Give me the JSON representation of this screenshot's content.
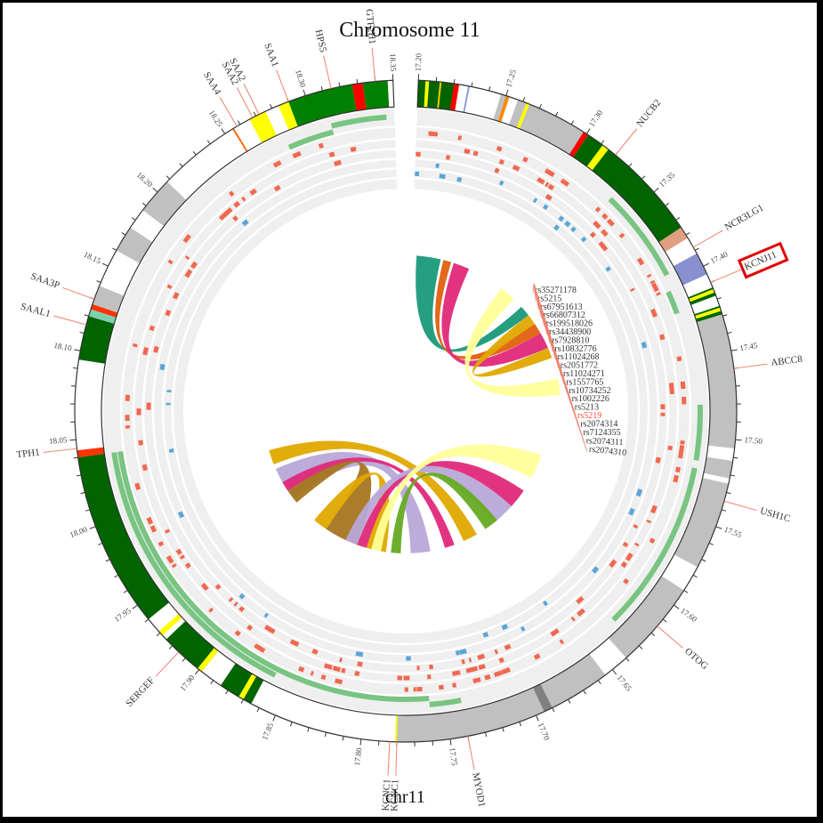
{
  "title": "Chromosome  11",
  "chromosome_label": "chr11",
  "colors": {
    "border": "#000000",
    "gene_line": "#f08070",
    "highlight_box": "#e00000",
    "highlight_snp": "#ff4d3a",
    "track_bg": "#efefef",
    "track_green": "#6cbf75",
    "track_red": "#f0684f",
    "track_blue": "#5aa5d8"
  },
  "chart_data": {
    "type": "circos",
    "title": "Chromosome 11",
    "chromosome": "chr11",
    "axis_unit": "Mb",
    "axis_range": [
      17.2,
      18.35
    ],
    "tick_labels": [
      "17.20",
      "17.25",
      "17.30",
      "17.35",
      "17.40",
      "17.45",
      "17.50",
      "17.55",
      "17.60",
      "17.65",
      "17.70",
      "17.75",
      "17.80",
      "17.85",
      "17.90",
      "17.95",
      "18.00",
      "18.05",
      "18.10",
      "18.15",
      "18.20",
      "18.25",
      "18.30",
      "18.35"
    ],
    "genes": [
      {
        "name": "GTF2H1",
        "pos": 18.34
      },
      {
        "name": "HPS5",
        "pos": 18.315
      },
      {
        "name": "SAA1",
        "pos": 18.29
      },
      {
        "name": "SAA2",
        "pos": 18.272
      },
      {
        "name": "SAA2",
        "pos": 18.268
      },
      {
        "name": "SAA4",
        "pos": 18.258
      },
      {
        "name": "NUCB2",
        "pos": 17.32
      },
      {
        "name": "NCR3LG1",
        "pos": 17.388
      },
      {
        "name": "KCNJ11",
        "pos": 17.41,
        "highlighted": true
      },
      {
        "name": "ABCC8",
        "pos": 17.46
      },
      {
        "name": "USH1C",
        "pos": 17.535
      },
      {
        "name": "OTOG",
        "pos": 17.615
      },
      {
        "name": "MYOD1",
        "pos": 17.74
      },
      {
        "name": "KCNC1",
        "pos": 17.784
      },
      {
        "name": "KCNC1",
        "pos": 17.78
      },
      {
        "name": "SERGEF",
        "pos": 17.915
      },
      {
        "name": "TPH1",
        "pos": 18.045
      },
      {
        "name": "SAAL1",
        "pos": 18.115
      },
      {
        "name": "SAA3P",
        "pos": 18.13
      }
    ],
    "snps": [
      "rs35271178",
      "rs5215",
      "rs67951613",
      "rs66807312",
      "rs199518026",
      "rs34438900",
      "rs7928810",
      "rs10832776",
      "rs11024268",
      "rs2051772",
      "rs11024271",
      "rs1557765",
      "rs10734252",
      "rs1002226",
      "rs5213",
      "rs5219",
      "rs2074314",
      "rs7124355",
      "rs2074311",
      "rs2074310"
    ],
    "highlighted_snp": "rs5219",
    "ideogram_segments": [
      {
        "start": 17.2,
        "end": 17.223,
        "color": "#006400"
      },
      {
        "start": 17.204,
        "end": 17.206,
        "color": "#ffff00"
      },
      {
        "start": 17.212,
        "end": 17.213,
        "color": "#ffcc00"
      },
      {
        "start": 17.22,
        "end": 17.223,
        "color": "#ff0000"
      },
      {
        "start": 17.223,
        "end": 17.247,
        "color": "#ffffff"
      },
      {
        "start": 17.228,
        "end": 17.229,
        "color": "#8899dd"
      },
      {
        "start": 17.247,
        "end": 17.298,
        "color": "#c0c0c0"
      },
      {
        "start": 17.25,
        "end": 17.252,
        "color": "#ff8800"
      },
      {
        "start": 17.252,
        "end": 17.257,
        "color": "#ffffff"
      },
      {
        "start": 17.262,
        "end": 17.264,
        "color": "#ffff00"
      },
      {
        "start": 17.298,
        "end": 17.301,
        "color": "#ff0000"
      },
      {
        "start": 17.301,
        "end": 17.375,
        "color": "#006400"
      },
      {
        "start": 17.311,
        "end": 17.315,
        "color": "#ffff00"
      },
      {
        "start": 17.375,
        "end": 17.382,
        "color": "#e0a080"
      },
      {
        "start": 17.382,
        "end": 17.392,
        "color": "#ffffff"
      },
      {
        "start": 17.392,
        "end": 17.405,
        "color": "#8890d0"
      },
      {
        "start": 17.405,
        "end": 17.413,
        "color": "#ffffff"
      },
      {
        "start": 17.413,
        "end": 17.418,
        "color": "#006400"
      },
      {
        "start": 17.414,
        "end": 17.416,
        "color": "#ffff00"
      },
      {
        "start": 17.418,
        "end": 17.424,
        "color": "#ffffff"
      },
      {
        "start": 17.424,
        "end": 17.429,
        "color": "#006400"
      },
      {
        "start": 17.425,
        "end": 17.427,
        "color": "#ffff00"
      },
      {
        "start": 17.429,
        "end": 17.505,
        "color": "#c0c0c0"
      },
      {
        "start": 17.505,
        "end": 17.512,
        "color": "#ffffff"
      },
      {
        "start": 17.512,
        "end": 17.522,
        "color": "#c0c0c0"
      },
      {
        "start": 17.522,
        "end": 17.525,
        "color": "#ffffff"
      },
      {
        "start": 17.525,
        "end": 17.575,
        "color": "#c0c0c0"
      },
      {
        "start": 17.575,
        "end": 17.59,
        "color": "#ffffff"
      },
      {
        "start": 17.59,
        "end": 17.64,
        "color": "#c0c0c0"
      },
      {
        "start": 17.64,
        "end": 17.655,
        "color": "#ffffff"
      },
      {
        "start": 17.655,
        "end": 17.78,
        "color": "#c0c0c0"
      },
      {
        "start": 17.69,
        "end": 17.695,
        "color": "#808080"
      },
      {
        "start": 17.78,
        "end": 17.781,
        "color": "#ffff00"
      },
      {
        "start": 17.781,
        "end": 17.865,
        "color": "#ffffff"
      },
      {
        "start": 17.865,
        "end": 17.885,
        "color": "#006400"
      },
      {
        "start": 17.87,
        "end": 17.873,
        "color": "#ffff00"
      },
      {
        "start": 17.885,
        "end": 17.898,
        "color": "#ffffff"
      },
      {
        "start": 17.898,
        "end": 17.925,
        "color": "#006400"
      },
      {
        "start": 17.898,
        "end": 17.901,
        "color": "#ffff00"
      },
      {
        "start": 17.925,
        "end": 17.94,
        "color": "#ffffff"
      },
      {
        "start": 17.94,
        "end": 18.04,
        "color": "#006400"
      },
      {
        "start": 17.928,
        "end": 17.931,
        "color": "#ffff00"
      },
      {
        "start": 18.04,
        "end": 18.044,
        "color": "#ff3300"
      },
      {
        "start": 18.044,
        "end": 18.075,
        "color": "#ffffff"
      },
      {
        "start": 18.075,
        "end": 18.095,
        "color": "#ffffff"
      },
      {
        "start": 18.095,
        "end": 18.12,
        "color": "#006400"
      },
      {
        "start": 18.12,
        "end": 18.124,
        "color": "#7fd0b0"
      },
      {
        "start": 18.124,
        "end": 18.127,
        "color": "#ff3300"
      },
      {
        "start": 18.127,
        "end": 18.138,
        "color": "#c0c0c0"
      },
      {
        "start": 18.138,
        "end": 18.16,
        "color": "#ffffff"
      },
      {
        "start": 18.16,
        "end": 18.175,
        "color": "#c0c0c0"
      },
      {
        "start": 18.175,
        "end": 18.187,
        "color": "#ffffff"
      },
      {
        "start": 18.187,
        "end": 18.208,
        "color": "#c0c0c0"
      },
      {
        "start": 18.208,
        "end": 18.255,
        "color": "#ffffff"
      },
      {
        "start": 18.255,
        "end": 18.256,
        "color": "#ff6600"
      },
      {
        "start": 18.256,
        "end": 18.266,
        "color": "#ffffff"
      },
      {
        "start": 18.266,
        "end": 18.276,
        "color": "#ffff00"
      },
      {
        "start": 18.276,
        "end": 18.284,
        "color": "#ffffff"
      },
      {
        "start": 18.284,
        "end": 18.29,
        "color": "#ffff00"
      },
      {
        "start": 18.29,
        "end": 18.327,
        "color": "#008000"
      },
      {
        "start": 18.327,
        "end": 18.333,
        "color": "#ff0000"
      },
      {
        "start": 18.333,
        "end": 18.347,
        "color": "#008000"
      },
      {
        "start": 18.347,
        "end": 18.35,
        "color": "#ffffff"
      }
    ],
    "tracks": [
      {
        "name": "green-track-outer",
        "color": "#6cbf75",
        "segments": [
          [
            18.31,
            18.345
          ],
          [
            17.335,
            17.395
          ],
          [
            17.48,
            17.515
          ],
          [
            17.52,
            17.63
          ],
          [
            17.74,
            17.76
          ],
          [
            17.86,
            18.04
          ]
        ]
      },
      {
        "name": "green-track-inner",
        "color": "#6cbf75",
        "segments": [
          [
            18.28,
            18.31
          ],
          [
            17.405,
            17.42
          ],
          [
            17.76,
            17.83
          ],
          [
            17.83,
            18.04
          ]
        ]
      },
      {
        "name": "snp-track-1",
        "color": "#f0684f"
      },
      {
        "name": "snp-track-2",
        "color": "#f0684f"
      },
      {
        "name": "snp-track-3",
        "color": "#f0684f"
      },
      {
        "name": "snp-track-4",
        "color": "#5aa5d8"
      },
      {
        "name": "snp-track-5",
        "color": "#5aa5d8"
      }
    ],
    "link_colors": [
      "#1a9a7a",
      "#e0287a",
      "#e06010",
      "#ffff99",
      "#e0a800",
      "#a67520",
      "#b8a8d8",
      "#66aa22"
    ]
  }
}
